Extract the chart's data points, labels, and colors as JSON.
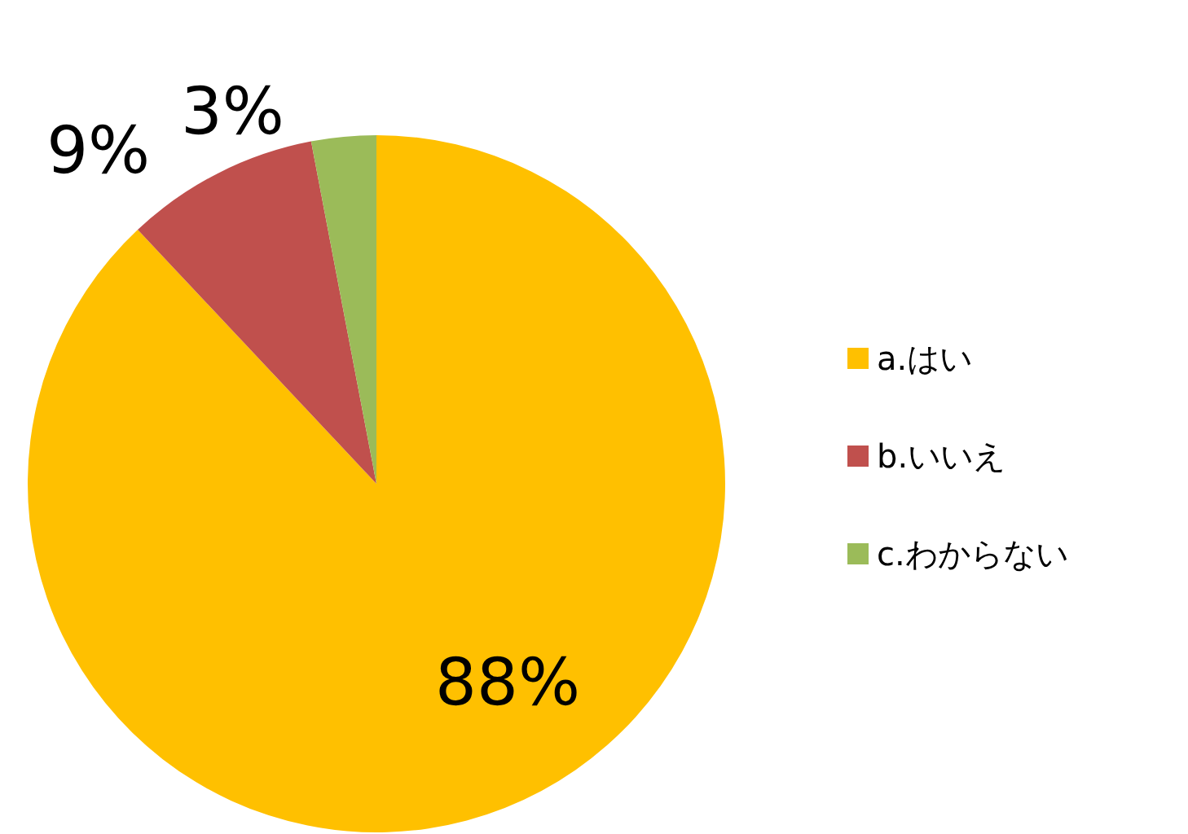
{
  "chart_data": {
    "type": "pie",
    "categories": [
      "a.はい",
      "b.いいえ",
      "c.わからない"
    ],
    "values": [
      88,
      9,
      3
    ],
    "colors": [
      "#ffc000",
      "#c0504d",
      "#9bbb59"
    ],
    "value_labels": [
      "88%",
      "9%",
      "3%"
    ],
    "legend": "right"
  }
}
